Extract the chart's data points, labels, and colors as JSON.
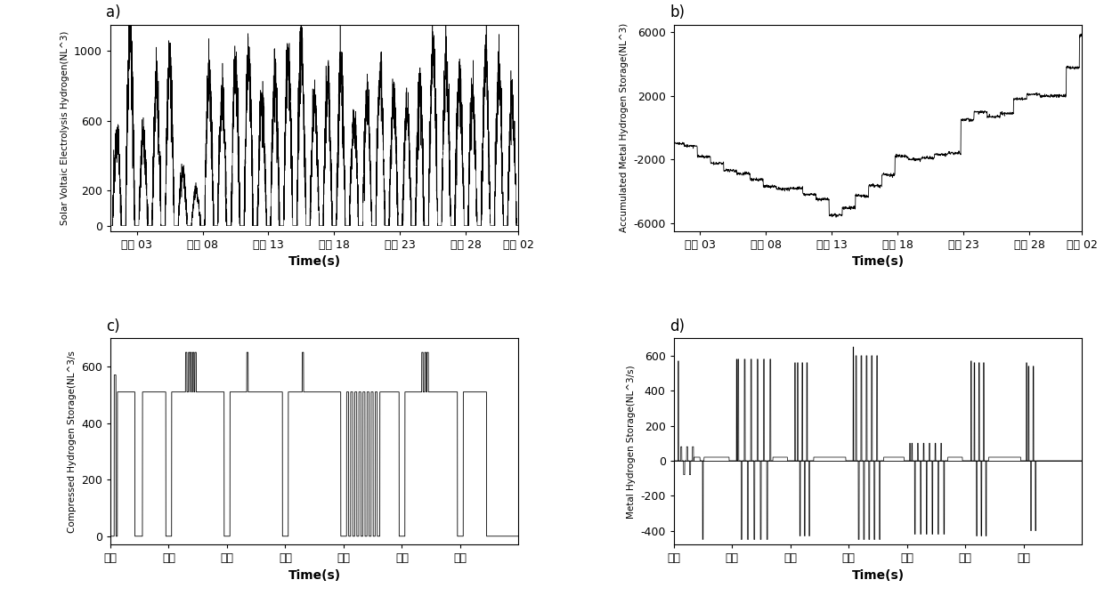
{
  "fig_width": 12.4,
  "fig_height": 6.88,
  "background_color": "#ffffff",
  "panels": {
    "a": {
      "label": "a)",
      "ylabel": "Solar Voltaic Electrolysis Hydrogen(NL^3)",
      "xlabel": "Time(s)",
      "ylim": [
        -30,
        1150
      ],
      "yticks": [
        0,
        200,
        600,
        1000
      ],
      "xtick_labels": [
        "七月 03",
        "七月 08",
        "七月 13",
        "七月 18",
        "七月 23",
        "七月 28",
        "八月 02"
      ],
      "xtick_pos": [
        2,
        7,
        12,
        17,
        22,
        27,
        31
      ],
      "n_days": 31
    },
    "b": {
      "label": "b)",
      "ylabel": "Accumulated Metal Hydrogen Storage(NL^3)",
      "xlabel": "Time(s)",
      "ylim": [
        -6500,
        6500
      ],
      "yticks": [
        -6000,
        -2000,
        2000,
        6000
      ],
      "xtick_labels": [
        "七月 03",
        "七月 08",
        "七月 13",
        "七月 18",
        "七月 23",
        "七月 28",
        "八月 02"
      ],
      "xtick_pos": [
        2,
        7,
        12,
        17,
        22,
        27,
        31
      ]
    },
    "c": {
      "label": "c)",
      "ylabel": "Compressed Hydrogen Storage(NL^3/s",
      "xlabel": "Time(s)",
      "ylim": [
        -30,
        700
      ],
      "yticks": [
        0,
        200,
        400,
        600
      ],
      "xtick_labels": [
        "周日",
        "周一",
        "周二",
        "周三",
        "周四",
        "周五",
        "周六"
      ],
      "n_days": 7
    },
    "d": {
      "label": "d)",
      "ylabel": "Metal Hydrogen Storage(NL^3/s)",
      "xlabel": "Time(s)",
      "ylim": [
        -480,
        700
      ],
      "yticks": [
        -400,
        -200,
        0,
        200,
        400,
        600
      ],
      "xtick_labels": [
        "周日",
        "周一",
        "周二",
        "周三",
        "周四",
        "周五",
        "周六"
      ],
      "n_days": 7
    }
  }
}
